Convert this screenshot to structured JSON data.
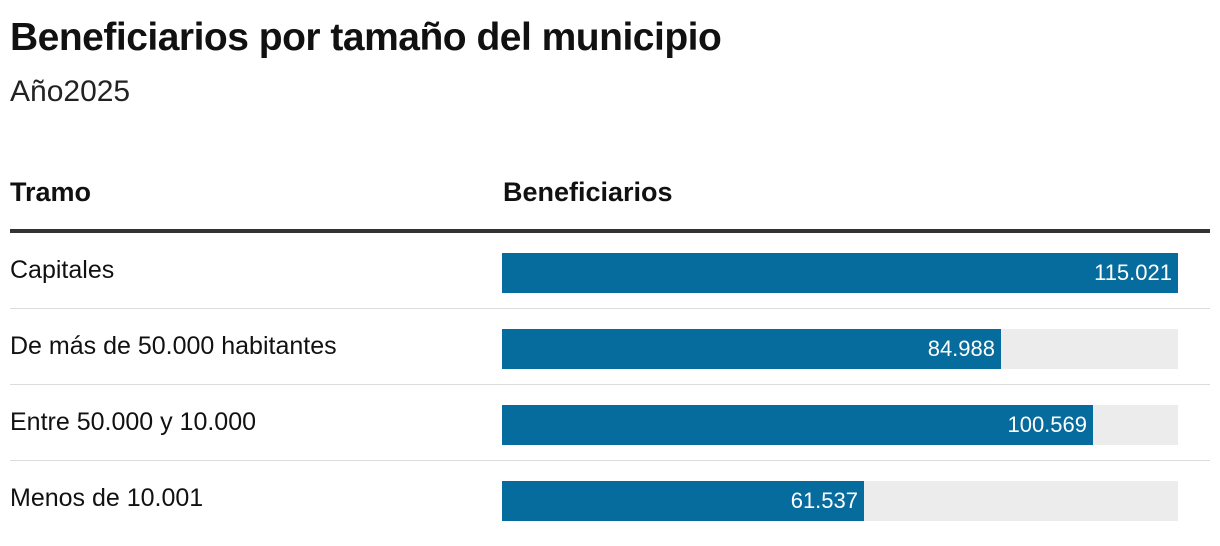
{
  "title": "Beneficiarios por tamaño del municipio",
  "subtitle": "Año2025",
  "columns": {
    "tramo": "Tramo",
    "beneficiarios": "Beneficiarios"
  },
  "colors": {
    "bar": "#066b9d",
    "track": "#ececec",
    "rule": "#333333"
  },
  "chart_data": {
    "type": "bar",
    "orientation": "horizontal",
    "title": "Beneficiarios por tamaño del municipio",
    "subtitle": "Año2025",
    "categories": [
      "Capitales",
      "De más de 50.000 habitantes",
      "Entre 50.000 y 10.000",
      "Menos de 10.001"
    ],
    "values": [
      115021,
      84988,
      100569,
      61537
    ],
    "value_labels": [
      "115.021",
      "84.988",
      "100.569",
      "61.537"
    ],
    "xlim": [
      0,
      115021
    ],
    "grid": false,
    "legend": "none"
  }
}
